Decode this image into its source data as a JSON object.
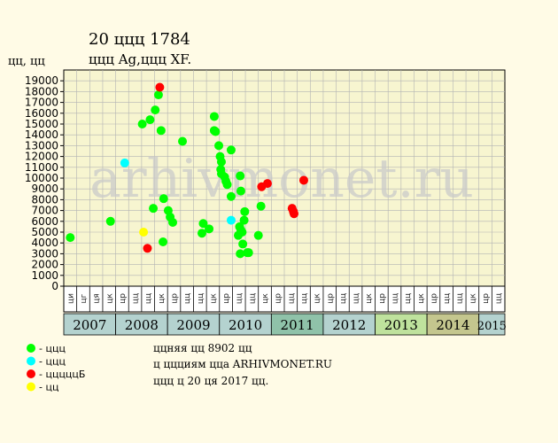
{
  "header": {
    "title": "20 ццц 1784",
    "subtitle": "ццц Ag,ццц XF.",
    "ylabel": "цц, цц"
  },
  "watermark": "arhivmonet.ru",
  "colors": {
    "background": "#fffbe6",
    "plot_bg": "#f7f5d0",
    "grid": "#b3b3b3",
    "year_colors": {
      "2007": "#b4d2cf",
      "2008": "#b4d2cf",
      "2009": "#b4d2cf",
      "2010": "#b4d2cf",
      "2011": "#8fc2a9",
      "2012": "#b4d2cf",
      "2013": "#bfe29d",
      "2014": "#c4c68e",
      "2015": "#b4d2cf"
    }
  },
  "chart_data": {
    "type": "scatter",
    "ylim": [
      0,
      20000
    ],
    "yticks": [
      0,
      1000,
      2000,
      3000,
      4000,
      5000,
      6000,
      7000,
      8000,
      9000,
      10000,
      11000,
      12000,
      13000,
      14000,
      15000,
      16000,
      17000,
      18000,
      19000
    ],
    "grid": true,
    "quarters": [
      {
        "year": "2007",
        "labels": [
          "ци",
          "цг",
          "ця",
          "цк"
        ]
      },
      {
        "year": "2008",
        "labels": [
          "цр",
          "цц",
          "цц",
          "цк"
        ]
      },
      {
        "year": "2009",
        "labels": [
          "цр",
          "цц",
          "цц",
          "цк"
        ]
      },
      {
        "year": "2010",
        "labels": [
          "цр",
          "цц",
          "цц",
          "цк"
        ]
      },
      {
        "year": "2011",
        "labels": [
          "цр",
          "цц",
          "цц",
          "цк"
        ]
      },
      {
        "year": "2012",
        "labels": [
          "цр",
          "цц",
          "цц",
          "цк"
        ]
      },
      {
        "year": "2013",
        "labels": [
          "цр",
          "цц",
          "цц",
          "цк"
        ]
      },
      {
        "year": "2014",
        "labels": [
          "цр",
          "цц",
          "цц",
          "цк"
        ]
      },
      {
        "year": "2015",
        "labels": [
          "цр",
          "цц"
        ]
      }
    ],
    "legend": [
      {
        "label": "- ццц",
        "color": "#00ff00"
      },
      {
        "label": "- ццц",
        "color": "#00ffff"
      },
      {
        "label": "- цццццБ",
        "color": "#ff0000"
      },
      {
        "label": "- цц",
        "color": "#ffff00"
      }
    ],
    "series": [
      {
        "color": "#00ff00",
        "points": [
          [
            0.0,
            4500
          ],
          [
            3.1,
            6000
          ],
          [
            5.55,
            15000
          ],
          [
            6.15,
            15400
          ],
          [
            6.4,
            7200
          ],
          [
            6.55,
            16300
          ],
          [
            6.8,
            17700
          ],
          [
            7.0,
            14400
          ],
          [
            7.15,
            4100
          ],
          [
            7.2,
            8100
          ],
          [
            7.55,
            7000
          ],
          [
            7.7,
            6400
          ],
          [
            7.9,
            5900
          ],
          [
            8.65,
            13400
          ],
          [
            10.15,
            4900
          ],
          [
            10.25,
            5800
          ],
          [
            10.7,
            5300
          ],
          [
            11.1,
            15700
          ],
          [
            11.1,
            14400
          ],
          [
            11.2,
            14300
          ],
          [
            11.45,
            13000
          ],
          [
            11.55,
            12000
          ],
          [
            11.6,
            10800
          ],
          [
            11.65,
            11500
          ],
          [
            11.65,
            10400
          ],
          [
            11.9,
            10100
          ],
          [
            12.0,
            9700
          ],
          [
            12.1,
            9400
          ],
          [
            12.4,
            12600
          ],
          [
            12.4,
            8300
          ],
          [
            12.95,
            4700
          ],
          [
            13.05,
            5500
          ],
          [
            13.1,
            10200
          ],
          [
            13.15,
            8800
          ],
          [
            13.15,
            5200
          ],
          [
            13.1,
            3000
          ],
          [
            13.25,
            5000
          ],
          [
            13.3,
            3900
          ],
          [
            13.4,
            6100
          ],
          [
            13.45,
            6900
          ],
          [
            13.65,
            3100
          ],
          [
            13.75,
            3100
          ],
          [
            14.5,
            4700
          ],
          [
            14.7,
            7400
          ]
        ]
      },
      {
        "color": "#00ffff",
        "points": [
          [
            4.2,
            11400
          ],
          [
            12.4,
            6100
          ]
        ]
      },
      {
        "color": "#ff0000",
        "points": [
          [
            6.9,
            18400
          ],
          [
            5.95,
            3500
          ],
          [
            14.75,
            9200
          ],
          [
            15.2,
            9500
          ],
          [
            17.1,
            7200
          ],
          [
            17.2,
            6900
          ],
          [
            17.25,
            6700
          ],
          [
            18.0,
            9800
          ]
        ]
      },
      {
        "color": "#ffff00",
        "points": [
          [
            5.65,
            5000
          ]
        ]
      }
    ]
  },
  "footer": {
    "line1": "ццняя цц 8902 цц",
    "line2": "ц ццциям цца ARHIVMONET.RU",
    "line3": "ццц ц 20 ця 2017 цц."
  }
}
